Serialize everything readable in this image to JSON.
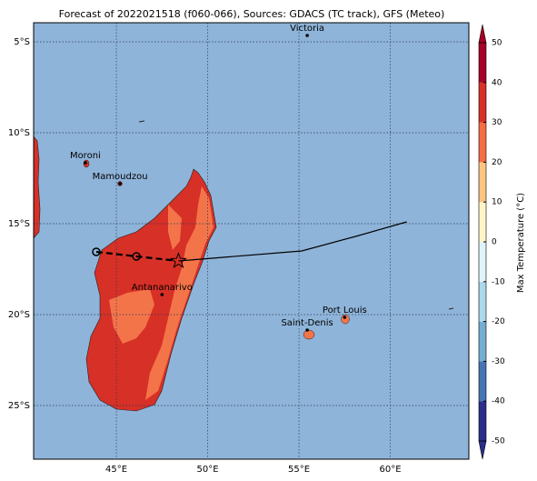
{
  "chart_data": {
    "type": "map",
    "title": "Forecast of 2022021518 (f060-066), Sources: GDACS (TC track), GFS (Meteo)",
    "xlim": [
      40.47,
      64.3
    ],
    "ylim": [
      -27.95,
      -3.95
    ],
    "xticks": [
      {
        "value": 45,
        "label": "45°E"
      },
      {
        "value": 50,
        "label": "50°E"
      },
      {
        "value": 55,
        "label": "55°E"
      },
      {
        "value": 60,
        "label": "60°E"
      }
    ],
    "yticks": [
      {
        "value": -5,
        "label": "5°S"
      },
      {
        "value": -10,
        "label": "10°S"
      },
      {
        "value": -15,
        "label": "15°S"
      },
      {
        "value": -20,
        "label": "20°S"
      },
      {
        "value": -25,
        "label": "25°S"
      }
    ],
    "grid": true,
    "ocean_color": "#8fb4d9",
    "cities": [
      {
        "name": "Victoria",
        "lon": 55.45,
        "lat": -4.65
      },
      {
        "name": "Moroni",
        "lon": 43.3,
        "lat": -11.65
      },
      {
        "name": "Mamoudzou",
        "lon": 45.2,
        "lat": -12.8
      },
      {
        "name": "Antananarivo",
        "lon": 47.5,
        "lat": -18.9
      },
      {
        "name": "Port Louis",
        "lon": 57.5,
        "lat": -20.15
      },
      {
        "name": "Saint-Denis",
        "lon": 55.45,
        "lat": -20.85
      }
    ],
    "track": [
      {
        "style": "dashed",
        "color": "#000000",
        "lon": [
          43.9,
          46.1,
          48.4
        ],
        "lat": [
          -16.55,
          -16.8,
          -17.05
        ]
      },
      {
        "style": "solid",
        "color": "#000000",
        "lon": [
          48.4,
          55.15,
          58.1,
          60.9
        ],
        "lat": [
          -17.05,
          -16.5,
          -15.7,
          -14.9
        ]
      }
    ],
    "colorbar": {
      "label": "Max Temperature (°C)",
      "ticks": [
        -50,
        -40,
        -30,
        -20,
        -10,
        0,
        10,
        20,
        30,
        40,
        50
      ],
      "colors": [
        "#2b2f8a",
        "#4575b4",
        "#74add1",
        "#abd9e9",
        "#e0f3f8",
        "#fef6c8",
        "#fdc582",
        "#f46d43",
        "#d73027",
        "#a50026"
      ]
    }
  }
}
